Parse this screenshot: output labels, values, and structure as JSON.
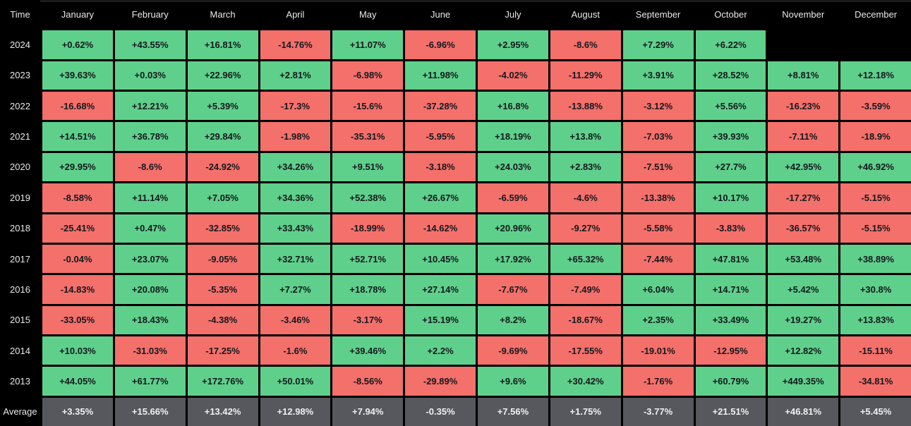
{
  "colors": {
    "background": "#000000",
    "positive_cell": "#5fd08c",
    "negative_cell": "#f4706b",
    "average_cell": "#56585d",
    "cell_text": "#14181d",
    "average_cell_text": "#eef0f2",
    "header_text": "#e6e8ea",
    "top_divider": "#3f434a"
  },
  "chart_data": {
    "type": "heatmap",
    "unit": "%",
    "columns": [
      "Time",
      "January",
      "February",
      "March",
      "April",
      "May",
      "June",
      "July",
      "August",
      "September",
      "October",
      "November",
      "December"
    ],
    "rows": [
      {
        "label": "2024",
        "is_average": false,
        "values": [
          "+0.62%",
          "+43.55%",
          "+16.81%",
          "-14.76%",
          "+11.07%",
          "-6.96%",
          "+2.95%",
          "-8.6%",
          "+7.29%",
          "+6.22%",
          "",
          ""
        ]
      },
      {
        "label": "2023",
        "is_average": false,
        "values": [
          "+39.63%",
          "+0.03%",
          "+22.96%",
          "+2.81%",
          "-6.98%",
          "+11.98%",
          "-4.02%",
          "-11.29%",
          "+3.91%",
          "+28.52%",
          "+8.81%",
          "+12.18%"
        ]
      },
      {
        "label": "2022",
        "is_average": false,
        "values": [
          "-16.68%",
          "+12.21%",
          "+5.39%",
          "-17.3%",
          "-15.6%",
          "-37.28%",
          "+16.8%",
          "-13.88%",
          "-3.12%",
          "+5.56%",
          "-16.23%",
          "-3.59%"
        ]
      },
      {
        "label": "2021",
        "is_average": false,
        "values": [
          "+14.51%",
          "+36.78%",
          "+29.84%",
          "-1.98%",
          "-35.31%",
          "-5.95%",
          "+18.19%",
          "+13.8%",
          "-7.03%",
          "+39.93%",
          "-7.11%",
          "-18.9%"
        ]
      },
      {
        "label": "2020",
        "is_average": false,
        "values": [
          "+29.95%",
          "-8.6%",
          "-24.92%",
          "+34.26%",
          "+9.51%",
          "-3.18%",
          "+24.03%",
          "+2.83%",
          "-7.51%",
          "+27.7%",
          "+42.95%",
          "+46.92%"
        ]
      },
      {
        "label": "2019",
        "is_average": false,
        "values": [
          "-8.58%",
          "+11.14%",
          "+7.05%",
          "+34.36%",
          "+52.38%",
          "+26.67%",
          "-6.59%",
          "-4.6%",
          "-13.38%",
          "+10.17%",
          "-17.27%",
          "-5.15%"
        ]
      },
      {
        "label": "2018",
        "is_average": false,
        "values": [
          "-25.41%",
          "+0.47%",
          "-32.85%",
          "+33.43%",
          "-18.99%",
          "-14.62%",
          "+20.96%",
          "-9.27%",
          "-5.58%",
          "-3.83%",
          "-36.57%",
          "-5.15%"
        ]
      },
      {
        "label": "2017",
        "is_average": false,
        "values": [
          "-0.04%",
          "+23.07%",
          "-9.05%",
          "+32.71%",
          "+52.71%",
          "+10.45%",
          "+17.92%",
          "+65.32%",
          "-7.44%",
          "+47.81%",
          "+53.48%",
          "+38.89%"
        ]
      },
      {
        "label": "2016",
        "is_average": false,
        "values": [
          "-14.83%",
          "+20.08%",
          "-5.35%",
          "+7.27%",
          "+18.78%",
          "+27.14%",
          "-7.67%",
          "-7.49%",
          "+6.04%",
          "+14.71%",
          "+5.42%",
          "+30.8%"
        ]
      },
      {
        "label": "2015",
        "is_average": false,
        "values": [
          "-33.05%",
          "+18.43%",
          "-4.38%",
          "-3.46%",
          "-3.17%",
          "+15.19%",
          "+8.2%",
          "-18.67%",
          "+2.35%",
          "+33.49%",
          "+19.27%",
          "+13.83%"
        ]
      },
      {
        "label": "2014",
        "is_average": false,
        "values": [
          "+10.03%",
          "-31.03%",
          "-17.25%",
          "-1.6%",
          "+39.46%",
          "+2.2%",
          "-9.69%",
          "-17.55%",
          "-19.01%",
          "-12.95%",
          "+12.82%",
          "-15.11%"
        ]
      },
      {
        "label": "2013",
        "is_average": false,
        "values": [
          "+44.05%",
          "+61.77%",
          "+172.76%",
          "+50.01%",
          "-8.56%",
          "-29.89%",
          "+9.6%",
          "+30.42%",
          "-1.76%",
          "+60.79%",
          "+449.35%",
          "-34.81%"
        ]
      },
      {
        "label": "Average",
        "is_average": true,
        "values": [
          "+3.35%",
          "+15.66%",
          "+13.42%",
          "+12.98%",
          "+7.94%",
          "-0.35%",
          "+7.56%",
          "+1.75%",
          "-3.77%",
          "+21.51%",
          "+46.81%",
          "+5.45%"
        ]
      }
    ]
  }
}
